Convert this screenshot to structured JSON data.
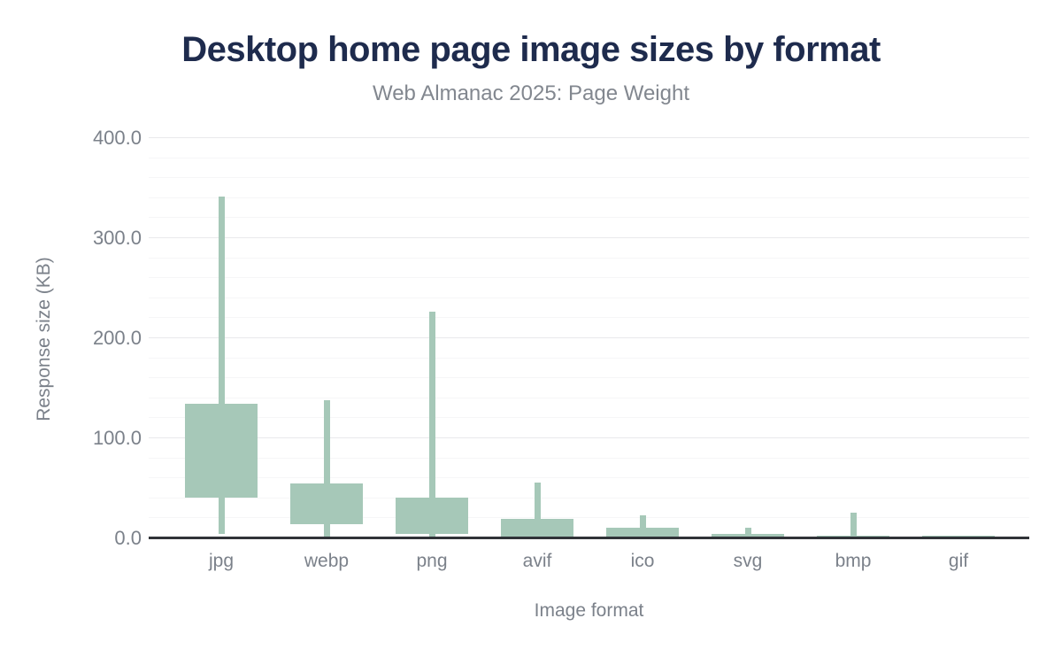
{
  "header": {
    "title": "Desktop home page image sizes by format",
    "subtitle": "Web Almanac 2025: Page Weight"
  },
  "chart_data": {
    "type": "boxplot",
    "title": "Desktop home page image sizes by format",
    "subtitle": "Web Almanac 2025: Page Weight",
    "xlabel": "Image format",
    "ylabel": "Response size (KB)",
    "ylim": [
      0,
      400
    ],
    "y_ticks": [
      0,
      100,
      200,
      300,
      400
    ],
    "y_tick_labels": [
      "0.0",
      "100.0",
      "200.0",
      "300.0",
      "400.0"
    ],
    "minor_grid_step": 20,
    "grid": true,
    "legend": "none",
    "categories": [
      "jpg",
      "webp",
      "png",
      "avif",
      "ico",
      "svg",
      "bmp",
      "gif"
    ],
    "series": [
      {
        "name": "jpg",
        "p10": 4,
        "p25": 40,
        "p75": 134,
        "p90": 341
      },
      {
        "name": "webp",
        "p10": 1.5,
        "p25": 14,
        "p75": 54,
        "p90": 138
      },
      {
        "name": "png",
        "p10": 0.8,
        "p25": 4,
        "p75": 40,
        "p90": 226
      },
      {
        "name": "avif",
        "p10": 0.3,
        "p25": 1.5,
        "p75": 19,
        "p90": 55
      },
      {
        "name": "ico",
        "p10": 0.3,
        "p25": 1,
        "p75": 10,
        "p90": 23
      },
      {
        "name": "svg",
        "p10": 0.2,
        "p25": 0.5,
        "p75": 4,
        "p90": 10
      },
      {
        "name": "bmp",
        "p10": 0.2,
        "p25": 0.5,
        "p75": 2.5,
        "p90": 25
      },
      {
        "name": "gif",
        "p10": 0.2,
        "p25": 0.4,
        "p75": 2,
        "p90": 2
      }
    ],
    "colors": {
      "box_fill": "#a6c8b8",
      "whisker": "#a6c8b8",
      "axis_line": "#303338",
      "title_color": "#1e2b4d",
      "subtitle_color": "#82878f",
      "label_color": "#7b818a",
      "major_grid": "#e9e9eb",
      "minor_grid": "#f6f6f7",
      "background": "#ffffff"
    }
  }
}
